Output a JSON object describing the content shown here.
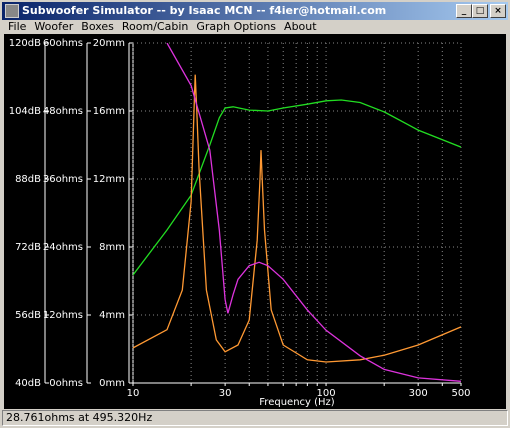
{
  "window": {
    "title": "Subwoofer Simulator -- by Isaac MCN -- f4ier@hotmail.com"
  },
  "menu": [
    "File",
    "Woofer",
    "Boxes",
    "Room/Cabin",
    "Graph Options",
    "About"
  ],
  "status_bar": {
    "text": "28.761ohms at 495.320Hz"
  },
  "chart_data": {
    "type": "line",
    "xlabel": "Frequency (Hz)",
    "xscale": "log",
    "xlim": [
      10,
      500
    ],
    "xticks": [
      10,
      {
        "value": 20,
        "label": null
      },
      30,
      {
        "value": 40,
        "label": null
      },
      {
        "value": 50,
        "label": null
      },
      {
        "value": 60,
        "label": null
      },
      {
        "value": 70,
        "label": null
      },
      {
        "value": 80,
        "label": null
      },
      {
        "value": 90,
        "label": null
      },
      100,
      {
        "value": 200,
        "label": null
      },
      300,
      {
        "value": 400,
        "label": null
      },
      500
    ],
    "ylim": [
      40,
      120
    ],
    "yticks": [
      {
        "value": 40,
        "label": "40dB"
      },
      {
        "value": 56,
        "label": "56dB"
      },
      {
        "value": 72,
        "label": "72dB"
      },
      {
        "value": 88,
        "label": "88dB"
      },
      {
        "value": 104,
        "label": "104dB"
      },
      {
        "value": 120,
        "label": "120dB"
      }
    ],
    "y2lim": [
      0,
      60
    ],
    "y2ticks": [
      {
        "value": 0,
        "label": "0ohms"
      },
      {
        "value": 12,
        "label": "12ohms"
      },
      {
        "value": 24,
        "label": "24ohms"
      },
      {
        "value": 36,
        "label": "36ohms"
      },
      {
        "value": 48,
        "label": "48ohms"
      },
      {
        "value": 60,
        "label": "60ohms"
      }
    ],
    "y3lim": [
      0,
      20
    ],
    "y3ticks": [
      {
        "value": 0,
        "label": "0mm"
      },
      {
        "value": 4,
        "label": "4mm"
      },
      {
        "value": 8,
        "label": "8mm"
      },
      {
        "value": 12,
        "label": "12mm"
      },
      {
        "value": 16,
        "label": "16mm"
      },
      {
        "value": 20,
        "label": "20mm"
      }
    ],
    "grid": true,
    "series": [
      {
        "color": "#22dd22",
        "axis": "y",
        "x": [
          10,
          15,
          20,
          25,
          28,
          30,
          33,
          40,
          50,
          60,
          80,
          100,
          120,
          150,
          200,
          300,
          500
        ],
        "values": [
          65.4,
          76,
          84.2,
          96,
          102.4,
          104.7,
          105,
          104.2,
          104,
          104.7,
          105.6,
          106.4,
          106.6,
          106,
          103.8,
          99.5,
          95.5
        ]
      },
      {
        "color": "#ff9933",
        "axis": "y2",
        "x": [
          10,
          15,
          18,
          20,
          20.7,
          21,
          21.4,
          22,
          24,
          27,
          30,
          35,
          40,
          44,
          45.5,
          46,
          46.7,
          48,
          52,
          60,
          80,
          100,
          150,
          200,
          300,
          500
        ],
        "values": [
          6.2,
          9.4,
          16.4,
          32,
          48,
          54.4,
          48,
          37.6,
          16.4,
          7.6,
          5.5,
          6.7,
          11.1,
          25.2,
          36,
          41.1,
          36,
          27,
          12.9,
          6.7,
          4.1,
          3.7,
          4.1,
          4.9,
          6.7,
          9.9
        ]
      },
      {
        "color": "#dd33dd",
        "axis": "y3",
        "x": [
          15,
          20,
          25,
          28,
          30,
          31,
          33,
          35,
          40,
          45,
          50,
          60,
          80,
          100,
          150,
          200,
          300,
          500
        ],
        "values": [
          20,
          17.5,
          13.7,
          9,
          4.9,
          4.1,
          5.2,
          6.1,
          6.9,
          7.1,
          6.9,
          6.1,
          4.3,
          3.1,
          1.6,
          0.8,
          0.3,
          0.1
        ]
      }
    ]
  }
}
